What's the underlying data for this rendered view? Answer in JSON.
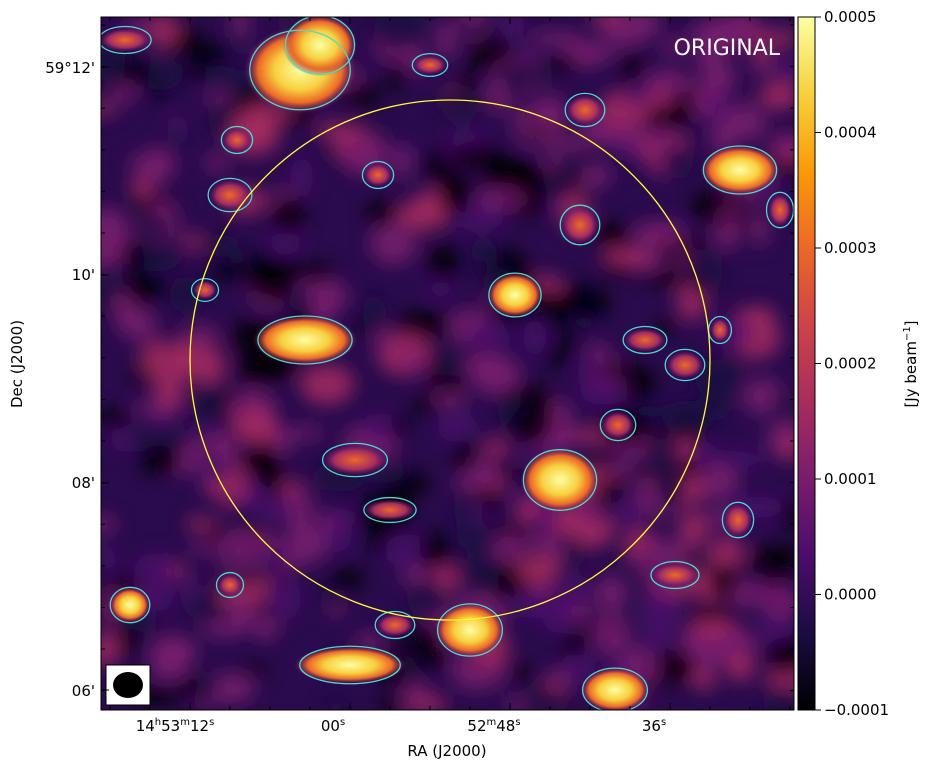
{
  "image": {
    "label": "ORIGINAL",
    "colormap": "inferno",
    "beam_ellipse_color": "#000000",
    "circle_color": "#ffff33",
    "contour_color": "#40e0d0"
  },
  "axes": {
    "xlabel": "RA (J2000)",
    "ylabel": "Dec (J2000)",
    "ra_ticks": [
      {
        "h": "14",
        "m": "53",
        "s": "12",
        "showhm": true
      },
      {
        "h": "",
        "m": "",
        "s": "00",
        "showhm": false
      },
      {
        "h": "",
        "m": "52",
        "s": "48",
        "showhm": true
      },
      {
        "h": "",
        "m": "",
        "s": "36",
        "showhm": false
      }
    ],
    "dec_ticks": [
      "59°12'",
      "10'",
      "08'",
      "06'"
    ]
  },
  "colorbar": {
    "label": "[Jy beam",
    "label_sup": "−1",
    "label_end": "]",
    "ticks": [
      "0.0005",
      "0.0004",
      "0.0003",
      "0.0002",
      "0.0001",
      "0.0000",
      "−0.0001"
    ],
    "colors": [
      "#000004",
      "#1b0c41",
      "#4a0c6b",
      "#781c6d",
      "#a52c60",
      "#cf4446",
      "#ed6925",
      "#fb9b06",
      "#f7d13d",
      "#fcffa4"
    ]
  }
}
